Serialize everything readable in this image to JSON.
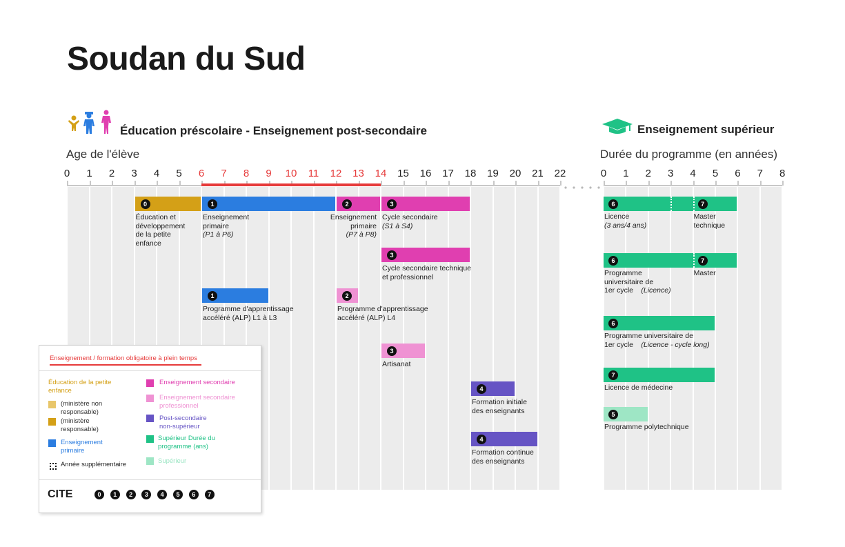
{
  "title": "Soudan du Sud",
  "left_section": {
    "heading": "Éducation préscolaire - Enseignement post-secondaire",
    "axis_label": "Age de l'élève",
    "ticks": [
      "0",
      "1",
      "2",
      "3",
      "4",
      "5",
      "6",
      "7",
      "8",
      "9",
      "10",
      "11",
      "12",
      "13",
      "14",
      "15",
      "16",
      "17",
      "18",
      "19",
      "20",
      "21",
      "22"
    ],
    "compulsory_range": [
      6,
      14
    ]
  },
  "right_section": {
    "heading": "Enseignement supérieur",
    "axis_label": "Durée du programme (en années)",
    "ticks": [
      "0",
      "1",
      "2",
      "3",
      "4",
      "5",
      "6",
      "7",
      "8"
    ]
  },
  "colors": {
    "ece": "#d4a017",
    "ece_light": "#e8c66a",
    "primary": "#2b7de0",
    "secondary": "#e03fb0",
    "secondary_prof": "#ef92d3",
    "post_sec": "#6654c4",
    "tertiary": "#1fc286",
    "tertiary_light": "#9ee6c5",
    "compulsory": "#e63a3a"
  },
  "left_programs": [
    {
      "badge": "0",
      "start": 3,
      "end": 6,
      "color": "ece",
      "row": 0,
      "label": "Éducation et\ndéveloppement\nde la petite\nenfance",
      "sub": ""
    },
    {
      "badge": "1",
      "start": 6,
      "end": 12,
      "color": "primary",
      "row": 0,
      "label": "Enseignement\nprimaire",
      "sub": "(P1 à P6)"
    },
    {
      "badge": "2",
      "start": 12,
      "end": 14,
      "color": "secondary",
      "row": 0,
      "label": "Enseignement\nprimaire",
      "sub": "(P7 à P8)"
    },
    {
      "badge": "3",
      "start": 14,
      "end": 18,
      "color": "secondary",
      "row": 0,
      "label": "Cycle secondaire",
      "sub": "(S1 à S4)"
    },
    {
      "badge": "3",
      "start": 14,
      "end": 18,
      "color": "secondary",
      "row": 1,
      "label": "Cycle secondaire technique\net professionnel",
      "sub": ""
    },
    {
      "badge": "1",
      "start": 6,
      "end": 9,
      "color": "primary",
      "row": 2,
      "label": "Programme d'apprentissage\naccéléré (ALP) L1 à L3",
      "sub": ""
    },
    {
      "badge": "2",
      "start": 12,
      "end": 13,
      "color": "secondary_prof",
      "row": 2,
      "label": "Programme d'apprentissage\naccéléré (ALP) L4",
      "sub": ""
    },
    {
      "badge": "3",
      "start": 14,
      "end": 16,
      "color": "secondary_prof",
      "row": 3,
      "label": "Artisanat",
      "sub": ""
    },
    {
      "badge": "4",
      "start": 18,
      "end": 20,
      "color": "post_sec",
      "row": 4,
      "label": "Formation initiale\ndes enseignants",
      "sub": ""
    },
    {
      "badge": "4",
      "start": 18,
      "end": 21,
      "color": "post_sec",
      "row": 5,
      "label": "Formation continue\ndes enseignants",
      "sub": ""
    }
  ],
  "right_programs": [
    {
      "badges": [
        "6",
        "7"
      ],
      "start": 0,
      "end": 6,
      "color": "tertiary",
      "row": 0,
      "label": "Licence",
      "sub": "(3 ans/4 ans)",
      "label2": "Master\ntechnique"
    },
    {
      "badges": [
        "6",
        "7"
      ],
      "start": 0,
      "end": 6,
      "color": "tertiary",
      "row": 1,
      "label": "Programme\nuniversitaire de\n1er cycle",
      "sub": "(Licence)",
      "label2": "Master"
    },
    {
      "badges": [
        "6"
      ],
      "start": 0,
      "end": 5,
      "color": "tertiary",
      "row": 2,
      "label": "Programme universitaire de\n1er cycle",
      "sub": "(Licence - cycle long)"
    },
    {
      "badges": [
        "7"
      ],
      "start": 0,
      "end": 5,
      "color": "tertiary",
      "row": 3,
      "label": "Licence de médecine",
      "sub": ""
    },
    {
      "badges": [
        "5"
      ],
      "start": 0,
      "end": 2,
      "color": "tertiary_light",
      "row": 4,
      "label": "Programme polytechnique",
      "sub": ""
    }
  ],
  "legend": {
    "title": "Enseignement / formation obligatoire à plein temps",
    "ece_title": "Éducation de la petite\nenfance",
    "ece_light": "(ministère non\nresponsable)",
    "ece_dark": "(ministère\nresponsable)",
    "primary": "Enseignement\nprimaire",
    "extra_year": "Année supplémentaire",
    "secondary": "Enseignement secondaire",
    "secondary_prof": "Enseignement secondaire\nprofessionnel",
    "post_sec": "Post-secondaire\nnon-supérieur",
    "tertiary": "Supérieur Durée du\nprogramme (ans)",
    "tertiary_light": "Supérieur",
    "cite_label": "CITE",
    "cite_levels": [
      "0",
      "1",
      "2",
      "3",
      "4",
      "5",
      "6",
      "7"
    ]
  }
}
